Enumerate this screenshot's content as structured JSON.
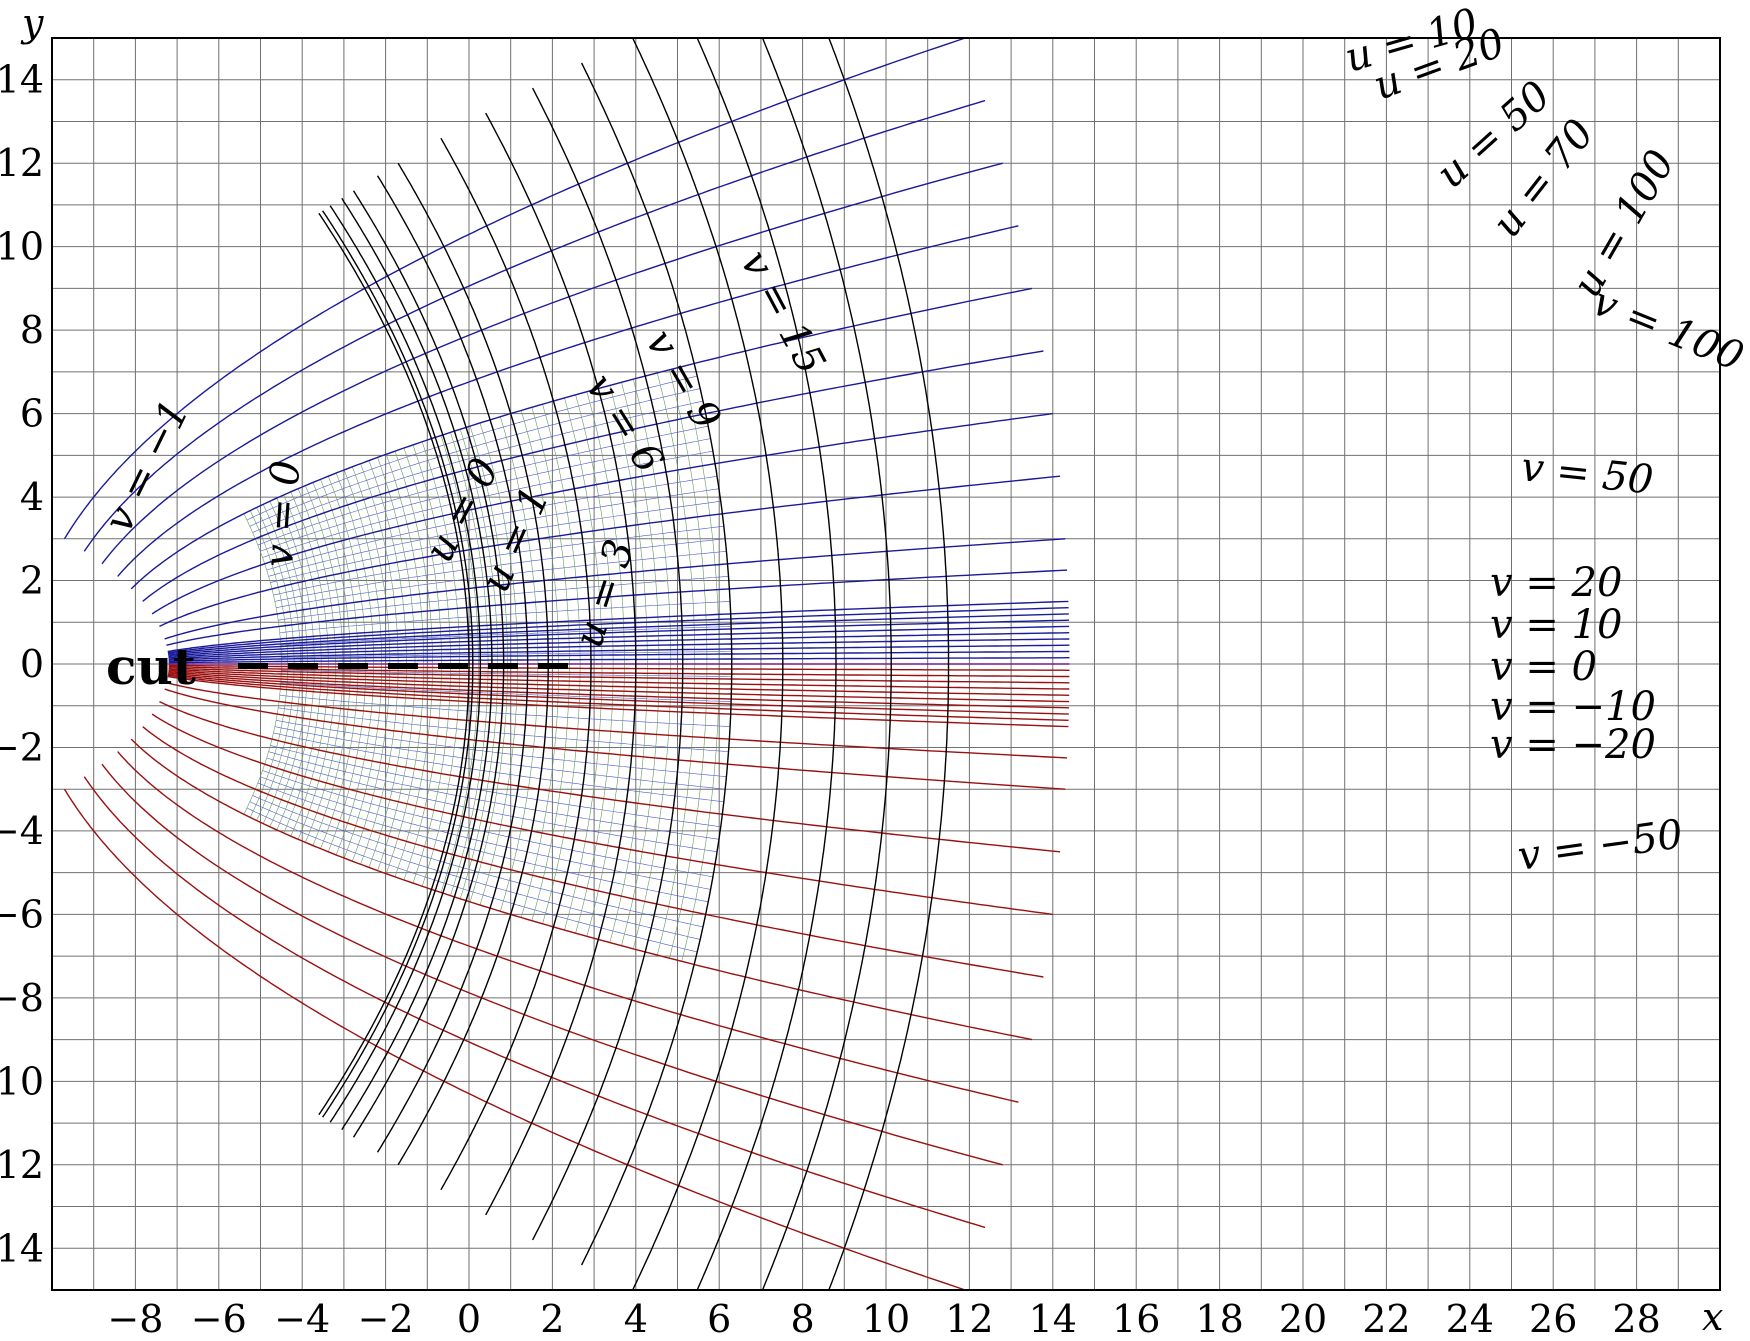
{
  "axes": {
    "x_name": "x",
    "y_name": "y",
    "xlim": [
      -10,
      30
    ],
    "ylim": [
      -15,
      15
    ],
    "x_ticks": [
      -8,
      -6,
      -4,
      -2,
      0,
      2,
      4,
      6,
      8,
      10,
      12,
      14,
      16,
      18,
      20,
      22,
      24,
      26,
      28
    ],
    "y_ticks": [
      -14,
      -12,
      -10,
      -8,
      -6,
      -4,
      -2,
      0,
      2,
      4,
      6,
      8,
      10,
      12,
      14
    ],
    "x_tick_labels": [
      "−8",
      "−6",
      "−4",
      "−2",
      "0",
      "2",
      "4",
      "6",
      "8",
      "10",
      "12",
      "14",
      "16",
      "18",
      "20",
      "22",
      "24",
      "26",
      "28"
    ],
    "y_tick_labels": [
      "−14",
      "−12",
      "−10",
      "−8",
      "−6",
      "−4",
      "−2",
      "0",
      "2",
      "4",
      "6",
      "8",
      "10",
      "12",
      "14"
    ],
    "grid": true
  },
  "mapping": {
    "u_upper": [
      0,
      1,
      3,
      6,
      9,
      15,
      20,
      30,
      40,
      50,
      60,
      70,
      80,
      90,
      100
    ],
    "v_upper": [
      0,
      1,
      2,
      3,
      4,
      5,
      6,
      7,
      8,
      9,
      10,
      15,
      20,
      30,
      40,
      50,
      60,
      70,
      80,
      90,
      100
    ],
    "u_lower": [
      0,
      1,
      3,
      6,
      9,
      15,
      20,
      30,
      40,
      50,
      60,
      70,
      80,
      90,
      100
    ],
    "v_lower": [
      -100,
      -90,
      -80,
      -70,
      -60,
      -50,
      -40,
      -30,
      -20,
      -15,
      -10,
      -9,
      -8,
      -7,
      -6,
      -5,
      -4,
      -3,
      -2,
      -1
    ],
    "colors": {
      "grid": "#707070",
      "u_curves": "#000000",
      "v_upper": "#1a1a9a",
      "v_lower": "#9a1010",
      "v_zero": "#7a1a8a",
      "fine_blue": "#4c5ad0",
      "fine_red": "#b05a4a",
      "fine_green": "#6a9a5a"
    }
  },
  "labels": {
    "cut": "cut",
    "u_10": "u = 10",
    "u_20": "u = 20",
    "u_50": "u = 50",
    "u_70": "u = 70",
    "u_100": "u = 100",
    "v_100": "v = 100",
    "v_50": "v = 50",
    "v_20": "v = 20",
    "v_10": "v = 10",
    "v_0": "v = 0",
    "v_m10": "v = −10",
    "v_m20": "v = −20",
    "v_m50": "v = −50",
    "v_15": "v = 15",
    "v_9": "v = 9",
    "v_6": "v = 6",
    "u_0": "u = 0",
    "u_1": "u = 1",
    "u_3": "u = 3",
    "v_m1": "v = −1",
    "v_0_left": "v = 0"
  }
}
